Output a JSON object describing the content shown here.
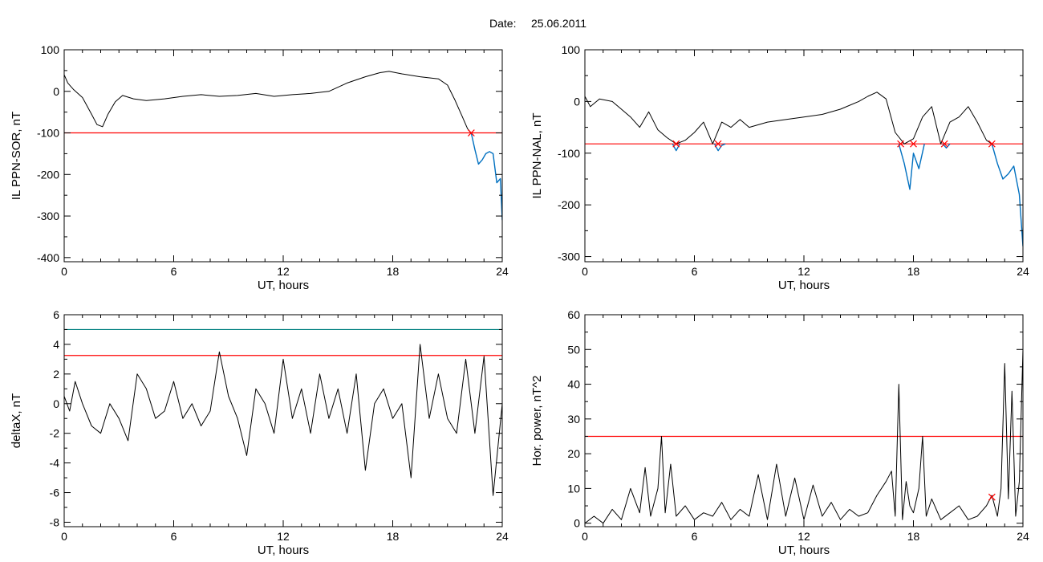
{
  "figure": {
    "date_label": "Date:",
    "date_value": "25.06.2011"
  },
  "chart_data": [
    {
      "id": "p1",
      "type": "line",
      "xlabel": "UT, hours",
      "ylabel": "IL PPN-SOR, nT",
      "xlim": [
        0,
        24
      ],
      "ylim": [
        -410,
        100
      ],
      "xticks": [
        0,
        6,
        12,
        18,
        24
      ],
      "yticks": [
        -400,
        -300,
        -200,
        -100,
        0,
        100
      ],
      "grid": false,
      "main_series": {
        "color": "#000000",
        "x": [
          0,
          0.2,
          0.5,
          1,
          1.5,
          1.8,
          2.1,
          2.4,
          2.8,
          3.2,
          3.8,
          4.5,
          5.5,
          6.5,
          7.5,
          8.5,
          9.5,
          10.5,
          11.5,
          12.5,
          13.5,
          14.5,
          15.5,
          16.5,
          17.3,
          17.8,
          18.5,
          19.5,
          20.5,
          21,
          21.4,
          21.8,
          22.1,
          22.3
        ],
        "y": [
          40,
          20,
          5,
          -15,
          -55,
          -80,
          -85,
          -55,
          -25,
          -10,
          -18,
          -22,
          -18,
          -12,
          -8,
          -12,
          -10,
          -5,
          -12,
          -8,
          -5,
          0,
          20,
          35,
          45,
          48,
          42,
          35,
          30,
          15,
          -20,
          -60,
          -90,
          -100
        ]
      },
      "segments": [
        {
          "color": "#0070c0",
          "x": [
            22.3,
            22.5,
            22.7,
            22.9,
            23.1,
            23.3,
            23.5,
            23.7,
            23.9,
            24
          ],
          "y": [
            -100,
            -140,
            -175,
            -165,
            -150,
            -145,
            -150,
            -220,
            -210,
            -310
          ]
        }
      ],
      "thresholds": [
        {
          "value": -100,
          "color": "#ff0000"
        }
      ],
      "markers": [
        {
          "x": 22.3,
          "y": -100,
          "color": "#ff0000"
        }
      ]
    },
    {
      "id": "p2",
      "type": "line",
      "xlabel": "UT, hours",
      "ylabel": "IL PPN-NAL, nT",
      "xlim": [
        0,
        24
      ],
      "ylim": [
        -310,
        100
      ],
      "xticks": [
        0,
        6,
        12,
        18,
        24
      ],
      "yticks": [
        -300,
        -200,
        -100,
        0,
        100
      ],
      "grid": false,
      "main_series": {
        "color": "#000000",
        "x": [
          0,
          0.3,
          0.8,
          1.5,
          2,
          2.5,
          3,
          3.5,
          4,
          4.5,
          5,
          5.5,
          6,
          6.5,
          7,
          7.5,
          8,
          8.5,
          9,
          10,
          11,
          12,
          13,
          14,
          15,
          15.5,
          16,
          16.5,
          17,
          17.5,
          18,
          18.5,
          19,
          19.5,
          20,
          20.5,
          21,
          21.5,
          22,
          22.3
        ],
        "y": [
          10,
          -10,
          5,
          0,
          -15,
          -30,
          -50,
          -20,
          -55,
          -70,
          -82,
          -75,
          -60,
          -40,
          -82,
          -40,
          -50,
          -35,
          -50,
          -40,
          -35,
          -30,
          -25,
          -15,
          0,
          10,
          18,
          5,
          -60,
          -82,
          -72,
          -30,
          -10,
          -82,
          -40,
          -30,
          -10,
          -40,
          -75,
          -82
        ]
      },
      "segments": [
        {
          "color": "#0070c0",
          "x": [
            4.8,
            5,
            5.2
          ],
          "y": [
            -82,
            -95,
            -82
          ]
        },
        {
          "color": "#0070c0",
          "x": [
            7.1,
            7.3,
            7.5,
            7.7
          ],
          "y": [
            -82,
            -95,
            -85,
            -82
          ]
        },
        {
          "color": "#0070c0",
          "x": [
            17.2,
            17.5,
            17.8,
            18,
            18.3,
            18.6
          ],
          "y": [
            -82,
            -120,
            -170,
            -100,
            -130,
            -82
          ]
        },
        {
          "color": "#0070c0",
          "x": [
            19.6,
            19.8,
            20
          ],
          "y": [
            -82,
            -90,
            -82
          ]
        },
        {
          "color": "#0070c0",
          "x": [
            22.3,
            22.6,
            22.9,
            23.2,
            23.5,
            23.8,
            24
          ],
          "y": [
            -82,
            -120,
            -150,
            -140,
            -125,
            -180,
            -280
          ]
        }
      ],
      "thresholds": [
        {
          "value": -82,
          "color": "#ff0000"
        }
      ],
      "markers": [
        {
          "x": 5.0,
          "y": -82,
          "color": "#ff0000"
        },
        {
          "x": 7.3,
          "y": -82,
          "color": "#ff0000"
        },
        {
          "x": 17.3,
          "y": -82,
          "color": "#ff0000"
        },
        {
          "x": 18.0,
          "y": -82,
          "color": "#ff0000"
        },
        {
          "x": 19.7,
          "y": -82,
          "color": "#ff0000"
        },
        {
          "x": 22.3,
          "y": -82,
          "color": "#ff0000"
        }
      ]
    },
    {
      "id": "p3",
      "type": "line",
      "xlabel": "UT, hours",
      "ylabel": "deltaX, nT",
      "xlim": [
        0,
        24
      ],
      "ylim": [
        -8.3,
        6
      ],
      "xticks": [
        0,
        6,
        12,
        18,
        24
      ],
      "yticks": [
        -8,
        -6,
        -4,
        -2,
        0,
        2,
        4,
        6
      ],
      "grid": false,
      "main_series": {
        "color": "#000000",
        "x": [
          0,
          0.3,
          0.6,
          1,
          1.5,
          2,
          2.5,
          3,
          3.5,
          4,
          4.5,
          5,
          5.5,
          6,
          6.5,
          7,
          7.5,
          8,
          8.5,
          9,
          9.5,
          10,
          10.5,
          11,
          11.5,
          12,
          12.5,
          13,
          13.5,
          14,
          14.5,
          15,
          15.5,
          16,
          16.5,
          17,
          17.5,
          18,
          18.5,
          19,
          19.5,
          20,
          20.5,
          21,
          21.5,
          22,
          22.5,
          23,
          23.5,
          24
        ],
        "y": [
          0.5,
          -0.5,
          1.5,
          0,
          -1.5,
          -2,
          0,
          -1,
          -2.5,
          2,
          1,
          -1,
          -0.5,
          1.5,
          -1,
          0,
          -1.5,
          -0.5,
          3.5,
          0.5,
          -1,
          -3.5,
          1,
          0,
          -2,
          3,
          -1,
          1,
          -2,
          2,
          -1,
          1,
          -2,
          2,
          -4.5,
          0,
          1,
          -1,
          0,
          -5,
          4,
          -1,
          2,
          -1,
          -2,
          3,
          -2,
          3.2,
          -6.2,
          0
        ]
      },
      "segments": [],
      "thresholds": [
        {
          "value": 5.0,
          "color": "#008080"
        },
        {
          "value": 3.25,
          "color": "#ff0000"
        }
      ],
      "markers": []
    },
    {
      "id": "p4",
      "type": "line",
      "xlabel": "UT, hours",
      "ylabel": "Hor. power, nT^2",
      "xlim": [
        0,
        24
      ],
      "ylim": [
        -1,
        60
      ],
      "xticks": [
        0,
        6,
        12,
        18,
        24
      ],
      "yticks": [
        0,
        10,
        20,
        30,
        40,
        50,
        60
      ],
      "grid": false,
      "main_series": {
        "color": "#000000",
        "x": [
          0,
          0.5,
          1,
          1.5,
          2,
          2.5,
          3,
          3.3,
          3.6,
          4,
          4.2,
          4.4,
          4.7,
          5,
          5.5,
          6,
          6.5,
          7,
          7.5,
          8,
          8.5,
          9,
          9.5,
          10,
          10.5,
          11,
          11.5,
          12,
          12.5,
          13,
          13.5,
          14,
          14.5,
          15,
          15.5,
          16,
          16.5,
          16.8,
          17,
          17.2,
          17.4,
          17.6,
          17.8,
          18,
          18.3,
          18.5,
          18.7,
          19,
          19.5,
          20,
          20.5,
          21,
          21.5,
          22,
          22.3,
          22.6,
          22.8,
          23,
          23.2,
          23.4,
          23.6,
          23.8,
          24
        ],
        "y": [
          0,
          2,
          0,
          4,
          1,
          10,
          3,
          16,
          2,
          10,
          25,
          3,
          17,
          2,
          5,
          1,
          3,
          2,
          6,
          1,
          4,
          2,
          14,
          1,
          17,
          2,
          13,
          1,
          11,
          2,
          6,
          1,
          4,
          2,
          3,
          8,
          12,
          15,
          2,
          40,
          1,
          12,
          5,
          3,
          10,
          25,
          2,
          7,
          1,
          3,
          5,
          1,
          2,
          5,
          8,
          2,
          10,
          46,
          7,
          38,
          2,
          12,
          50
        ]
      },
      "segments": [],
      "thresholds": [
        {
          "value": 25,
          "color": "#ff0000"
        }
      ],
      "markers": [
        {
          "x": 22.3,
          "y": 7.5,
          "color": "#ff0000"
        }
      ]
    }
  ]
}
